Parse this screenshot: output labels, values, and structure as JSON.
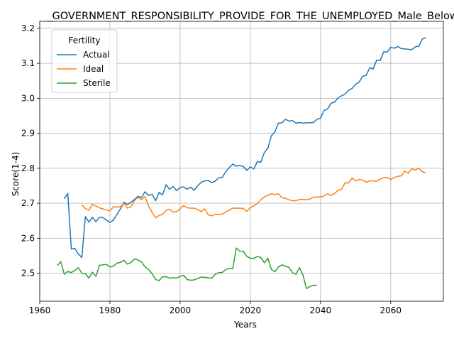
{
  "chart_data": {
    "type": "line",
    "title": "_GOVERNMENT_RESPONSIBILITY_PROVIDE_FOR_THE_UNEMPLOYED_Male_Below",
    "xlabel": "Years",
    "ylabel": "Score(1-4)",
    "xlim": [
      1960,
      2075
    ],
    "ylim": [
      2.42,
      3.22
    ],
    "xticks": [
      1960,
      1980,
      2000,
      2020,
      2040,
      2060
    ],
    "yticks": [
      2.5,
      2.6,
      2.7,
      2.8,
      2.9,
      3.0,
      3.1,
      3.2
    ],
    "grid": true,
    "legend": {
      "title": "Fertility",
      "placement": "top-left"
    },
    "series": [
      {
        "name": "Actual",
        "color": "#1f77b4",
        "x": [
          1967,
          1968,
          1969,
          1970,
          1971,
          1972,
          1973,
          1974,
          1975,
          1976,
          1977,
          1978,
          1979,
          1980,
          1981,
          1982,
          1983,
          1984,
          1985,
          1986,
          1987,
          1988,
          1989,
          1990,
          1991,
          1992,
          1993,
          1994,
          1995,
          1996,
          1997,
          1998,
          1999,
          2000,
          2001,
          2002,
          2003,
          2004,
          2005,
          2006,
          2007,
          2008,
          2009,
          2010,
          2011,
          2012,
          2013,
          2014,
          2015,
          2016,
          2017,
          2018,
          2019,
          2020,
          2021,
          2022,
          2023,
          2024,
          2025,
          2026,
          2027,
          2028,
          2029,
          2030,
          2031,
          2032,
          2033,
          2034,
          2035,
          2036,
          2037,
          2038,
          2039,
          2040,
          2041,
          2042,
          2043,
          2044,
          2045,
          2046,
          2047,
          2048,
          2049,
          2050,
          2051,
          2052,
          2053,
          2054,
          2055,
          2056,
          2057,
          2058,
          2059,
          2060,
          2061,
          2062,
          2063,
          2064,
          2065,
          2066,
          2067,
          2068,
          2069,
          2070
        ],
        "y": [
          2.713,
          2.728,
          2.569,
          2.571,
          2.555,
          2.545,
          2.662,
          2.646,
          2.66,
          2.647,
          2.66,
          2.659,
          2.652,
          2.645,
          2.652,
          2.668,
          2.684,
          2.703,
          2.696,
          2.703,
          2.711,
          2.72,
          2.716,
          2.733,
          2.722,
          2.726,
          2.707,
          2.731,
          2.724,
          2.753,
          2.74,
          2.748,
          2.736,
          2.745,
          2.747,
          2.74,
          2.746,
          2.737,
          2.75,
          2.76,
          2.764,
          2.765,
          2.759,
          2.763,
          2.773,
          2.774,
          2.79,
          2.802,
          2.812,
          2.806,
          2.808,
          2.805,
          2.794,
          2.804,
          2.798,
          2.819,
          2.817,
          2.845,
          2.857,
          2.893,
          2.904,
          2.929,
          2.93,
          2.94,
          2.935,
          2.936,
          2.929,
          2.931,
          2.929,
          2.93,
          2.93,
          2.931,
          2.94,
          2.943,
          2.965,
          2.969,
          2.986,
          2.989,
          3.001,
          3.007,
          3.012,
          3.023,
          3.028,
          3.04,
          3.046,
          3.063,
          3.065,
          3.087,
          3.084,
          3.109,
          3.108,
          3.133,
          3.132,
          3.146,
          3.143,
          3.148,
          3.142,
          3.141,
          3.14,
          3.139,
          3.147,
          3.149,
          3.169,
          3.174
        ]
      },
      {
        "name": "Ideal",
        "color": "#ff7f0e",
        "x": [
          1972,
          1973,
          1974,
          1975,
          1976,
          1977,
          1978,
          1979,
          1980,
          1981,
          1982,
          1983,
          1984,
          1985,
          1986,
          1987,
          1988,
          1989,
          1990,
          1991,
          1992,
          1993,
          1994,
          1995,
          1996,
          1997,
          1998,
          1999,
          2000,
          2001,
          2002,
          2003,
          2004,
          2005,
          2006,
          2007,
          2008,
          2009,
          2010,
          2011,
          2012,
          2013,
          2014,
          2015,
          2016,
          2017,
          2018,
          2019,
          2020,
          2021,
          2022,
          2023,
          2024,
          2025,
          2026,
          2027,
          2028,
          2029,
          2030,
          2031,
          2032,
          2033,
          2034,
          2035,
          2036,
          2037,
          2038,
          2039,
          2040,
          2041,
          2042,
          2043,
          2044,
          2045,
          2046,
          2047,
          2048,
          2049,
          2050,
          2051,
          2052,
          2053,
          2054,
          2055,
          2056,
          2057,
          2058,
          2059,
          2060,
          2061,
          2062,
          2063,
          2064,
          2065,
          2066,
          2067,
          2068,
          2069,
          2070
        ],
        "y": [
          2.695,
          2.685,
          2.68,
          2.697,
          2.692,
          2.687,
          2.684,
          2.681,
          2.678,
          2.69,
          2.689,
          2.69,
          2.7,
          2.686,
          2.69,
          2.708,
          2.717,
          2.71,
          2.719,
          2.692,
          2.675,
          2.658,
          2.665,
          2.668,
          2.68,
          2.683,
          2.675,
          2.676,
          2.684,
          2.693,
          2.687,
          2.686,
          2.686,
          2.682,
          2.676,
          2.684,
          2.667,
          2.664,
          2.668,
          2.668,
          2.669,
          2.675,
          2.68,
          2.686,
          2.686,
          2.686,
          2.685,
          2.677,
          2.687,
          2.693,
          2.699,
          2.71,
          2.718,
          2.723,
          2.727,
          2.725,
          2.727,
          2.716,
          2.714,
          2.71,
          2.707,
          2.707,
          2.711,
          2.711,
          2.71,
          2.712,
          2.717,
          2.718,
          2.718,
          2.721,
          2.727,
          2.722,
          2.728,
          2.737,
          2.74,
          2.758,
          2.758,
          2.772,
          2.764,
          2.768,
          2.766,
          2.76,
          2.764,
          2.764,
          2.763,
          2.769,
          2.773,
          2.774,
          2.768,
          2.773,
          2.777,
          2.778,
          2.792,
          2.786,
          2.799,
          2.795,
          2.8,
          2.79,
          2.787
        ]
      },
      {
        "name": "Sterile",
        "color": "#2ca02c",
        "x": [
          1965,
          1966,
          1967,
          1968,
          1969,
          1970,
          1971,
          1972,
          1973,
          1974,
          1975,
          1976,
          1977,
          1978,
          1979,
          1980,
          1981,
          1982,
          1983,
          1984,
          1985,
          1986,
          1987,
          1988,
          1989,
          1990,
          1991,
          1992,
          1993,
          1994,
          1995,
          1996,
          1997,
          1998,
          1999,
          2000,
          2001,
          2002,
          2003,
          2004,
          2005,
          2006,
          2007,
          2008,
          2009,
          2010,
          2011,
          2012,
          2013,
          2014,
          2015,
          2016,
          2017,
          2018,
          2019,
          2020,
          2021,
          2022,
          2023,
          2024,
          2025,
          2026,
          2027,
          2028,
          2029,
          2030,
          2031,
          2032,
          2033,
          2034,
          2035,
          2036,
          2037,
          2038,
          2039
        ],
        "y": [
          2.522,
          2.533,
          2.497,
          2.505,
          2.502,
          2.508,
          2.516,
          2.5,
          2.499,
          2.486,
          2.503,
          2.491,
          2.522,
          2.524,
          2.525,
          2.518,
          2.52,
          2.529,
          2.531,
          2.537,
          2.526,
          2.531,
          2.541,
          2.538,
          2.532,
          2.518,
          2.511,
          2.499,
          2.482,
          2.479,
          2.49,
          2.49,
          2.486,
          2.487,
          2.486,
          2.491,
          2.494,
          2.482,
          2.48,
          2.481,
          2.485,
          2.489,
          2.488,
          2.487,
          2.486,
          2.497,
          2.502,
          2.502,
          2.511,
          2.513,
          2.513,
          2.572,
          2.563,
          2.563,
          2.548,
          2.543,
          2.542,
          2.548,
          2.545,
          2.53,
          2.543,
          2.511,
          2.504,
          2.518,
          2.524,
          2.52,
          2.517,
          2.502,
          2.497,
          2.516,
          2.495,
          2.456,
          2.462,
          2.466,
          2.465
        ]
      }
    ]
  }
}
